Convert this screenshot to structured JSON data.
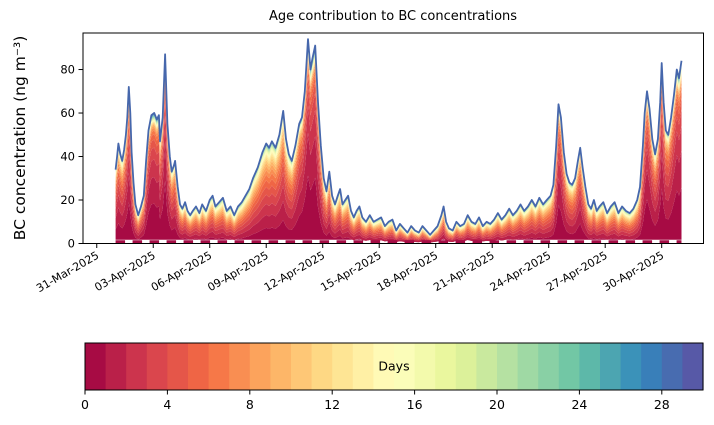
{
  "chart_data": {
    "type": "area",
    "title": "Age contribution to BC concentrations",
    "ylabel": "BC concentration (ng m⁻³)",
    "grid": false,
    "x_tick_labels": [
      "31-Mar-2025",
      "03-Apr-2025",
      "06-Apr-2025",
      "09-Apr-2025",
      "12-Apr-2025",
      "15-Apr-2025",
      "18-Apr-2025",
      "21-Apr-2025",
      "24-Apr-2025",
      "27-Apr-2025",
      "30-Apr-2025"
    ],
    "x_tick_days": [
      0,
      3,
      6,
      9,
      12,
      15,
      18,
      21,
      24,
      27,
      30
    ],
    "x_domain_days": [
      -0.73,
      32.22
    ],
    "y_ticks": [
      0,
      20,
      40,
      60,
      80
    ],
    "y_domain": [
      0,
      96.8
    ],
    "age_bins_days": 30,
    "series": {
      "name": "total-BC-with-age-stacked-composition",
      "t_days_since_first_tick": [
        1.0,
        1.08,
        1.15,
        1.25,
        1.35,
        1.45,
        1.55,
        1.62,
        1.7,
        1.78,
        1.85,
        1.95,
        2.05,
        2.2,
        2.35,
        2.5,
        2.62,
        2.75,
        2.9,
        3.05,
        3.19,
        3.3,
        3.36,
        3.5,
        3.63,
        3.75,
        3.88,
        3.98,
        4.1,
        4.16,
        4.3,
        4.42,
        4.55,
        4.69,
        4.82,
        4.96,
        5.1,
        5.27,
        5.45,
        5.6,
        5.8,
        6.0,
        6.15,
        6.3,
        6.5,
        6.7,
        6.9,
        7.1,
        7.3,
        7.5,
        7.7,
        7.9,
        8.1,
        8.3,
        8.55,
        8.8,
        9.0,
        9.15,
        9.3,
        9.5,
        9.7,
        9.9,
        10.05,
        10.2,
        10.36,
        10.55,
        10.75,
        10.9,
        11.05,
        11.22,
        11.35,
        11.45,
        11.6,
        11.75,
        11.9,
        12.05,
        12.2,
        12.35,
        12.5,
        12.65,
        12.8,
        12.92,
        13.05,
        13.2,
        13.35,
        13.5,
        13.65,
        13.8,
        13.95,
        14.1,
        14.3,
        14.5,
        14.7,
        14.9,
        15.1,
        15.3,
        15.5,
        15.7,
        15.9,
        16.1,
        16.3,
        16.5,
        16.7,
        16.9,
        17.1,
        17.3,
        17.5,
        17.7,
        17.9,
        18.1,
        18.3,
        18.42,
        18.55,
        18.7,
        18.9,
        19.1,
        19.3,
        19.5,
        19.7,
        19.9,
        20.1,
        20.3,
        20.5,
        20.7,
        20.9,
        21.1,
        21.3,
        21.5,
        21.7,
        21.9,
        22.1,
        22.3,
        22.5,
        22.7,
        22.9,
        23.1,
        23.3,
        23.5,
        23.7,
        23.9,
        24.1,
        24.25,
        24.4,
        24.52,
        24.65,
        24.8,
        24.95,
        25.1,
        25.25,
        25.4,
        25.55,
        25.67,
        25.8,
        25.95,
        26.1,
        26.25,
        26.4,
        26.55,
        26.7,
        26.9,
        27.1,
        27.3,
        27.5,
        27.7,
        27.9,
        28.1,
        28.3,
        28.5,
        28.7,
        28.85,
        29.0,
        29.1,
        29.22,
        29.35,
        29.5,
        29.65,
        29.8,
        29.92,
        30.0,
        30.1,
        30.22,
        30.35,
        30.5,
        30.65,
        30.8,
        30.92,
        31.05
      ],
      "total_ng_m3": [
        34,
        40,
        46,
        41,
        38,
        43,
        50,
        58,
        72,
        60,
        42,
        28,
        18,
        13,
        17,
        22,
        38,
        52,
        59,
        60,
        57,
        59,
        47,
        58,
        87,
        55,
        40,
        33,
        36,
        38,
        26,
        18,
        16,
        19,
        15,
        13,
        15,
        17,
        14,
        18,
        15,
        20,
        22,
        17,
        19,
        21,
        15,
        17,
        13,
        17,
        19,
        22,
        25,
        30,
        35,
        42,
        46,
        44,
        47,
        44,
        50,
        61,
        48,
        41,
        38,
        45,
        55,
        58,
        70,
        94,
        80,
        85,
        91,
        65,
        45,
        30,
        24,
        33,
        22,
        18,
        22,
        25,
        18,
        20,
        22,
        15,
        12,
        15,
        17,
        12,
        10,
        13,
        10,
        11,
        12,
        8,
        10,
        11,
        6,
        9,
        7,
        5,
        8,
        6,
        5,
        8,
        6,
        4,
        6,
        8,
        13,
        17,
        10,
        7,
        6,
        10,
        8,
        9,
        13,
        10,
        9,
        12,
        8,
        10,
        9,
        11,
        14,
        11,
        13,
        16,
        13,
        15,
        18,
        15,
        17,
        20,
        17,
        21,
        18,
        20,
        22,
        27,
        45,
        64,
        58,
        42,
        32,
        28,
        27,
        30,
        38,
        44,
        35,
        26,
        18,
        16,
        20,
        15,
        17,
        19,
        14,
        17,
        19,
        14,
        17,
        15,
        14,
        16,
        20,
        26,
        45,
        60,
        70,
        62,
        48,
        41,
        48,
        65,
        83,
        65,
        52,
        50,
        58,
        68,
        80,
        76,
        84
      ],
      "fresh_fraction": [
        0.6,
        0.62,
        0.63,
        0.6,
        0.58,
        0.62,
        0.68,
        0.72,
        0.76,
        0.7,
        0.62,
        0.52,
        0.45,
        0.4,
        0.5,
        0.55,
        0.68,
        0.78,
        0.82,
        0.82,
        0.8,
        0.8,
        0.72,
        0.78,
        0.85,
        0.74,
        0.64,
        0.58,
        0.6,
        0.6,
        0.48,
        0.4,
        0.37,
        0.38,
        0.34,
        0.32,
        0.33,
        0.34,
        0.31,
        0.33,
        0.3,
        0.32,
        0.33,
        0.3,
        0.3,
        0.3,
        0.28,
        0.28,
        0.26,
        0.28,
        0.3,
        0.33,
        0.36,
        0.4,
        0.42,
        0.45,
        0.46,
        0.45,
        0.46,
        0.45,
        0.5,
        0.55,
        0.5,
        0.48,
        0.5,
        0.6,
        0.7,
        0.74,
        0.8,
        0.85,
        0.82,
        0.83,
        0.85,
        0.75,
        0.65,
        0.5,
        0.45,
        0.5,
        0.4,
        0.36,
        0.37,
        0.38,
        0.33,
        0.33,
        0.34,
        0.3,
        0.28,
        0.28,
        0.29,
        0.26,
        0.25,
        0.26,
        0.24,
        0.24,
        0.24,
        0.22,
        0.22,
        0.22,
        0.2,
        0.2,
        0.2,
        0.18,
        0.2,
        0.18,
        0.18,
        0.2,
        0.18,
        0.16,
        0.18,
        0.2,
        0.27,
        0.32,
        0.24,
        0.2,
        0.2,
        0.24,
        0.22,
        0.22,
        0.26,
        0.24,
        0.24,
        0.26,
        0.22,
        0.24,
        0.24,
        0.26,
        0.28,
        0.26,
        0.28,
        0.3,
        0.28,
        0.3,
        0.32,
        0.3,
        0.32,
        0.34,
        0.32,
        0.35,
        0.33,
        0.35,
        0.38,
        0.45,
        0.65,
        0.78,
        0.75,
        0.65,
        0.55,
        0.5,
        0.48,
        0.52,
        0.6,
        0.65,
        0.55,
        0.45,
        0.35,
        0.32,
        0.34,
        0.3,
        0.3,
        0.32,
        0.28,
        0.3,
        0.3,
        0.28,
        0.3,
        0.28,
        0.28,
        0.3,
        0.35,
        0.45,
        0.65,
        0.75,
        0.8,
        0.75,
        0.68,
        0.62,
        0.68,
        0.78,
        0.82,
        0.75,
        0.68,
        0.68,
        0.72,
        0.78,
        0.82,
        0.8,
        0.82
      ]
    },
    "colorbar": {
      "label": "Days",
      "ticks": [
        0,
        4,
        8,
        12,
        16,
        20,
        24,
        28
      ],
      "range": [
        0,
        30
      ],
      "n_segments": 30,
      "legend_position": "bottom"
    },
    "colors": {
      "spectral_anchors": [
        "#9e0142",
        "#d53e4f",
        "#f46d43",
        "#fdae61",
        "#fee08b",
        "#ffffbf",
        "#e6f598",
        "#abdda4",
        "#66c2a5",
        "#3288bd",
        "#5e4fa2"
      ],
      "total_line": "#4667ac",
      "bottom_dash": "#a40d45",
      "axis": "#000000",
      "background": "#ffffff"
    }
  }
}
